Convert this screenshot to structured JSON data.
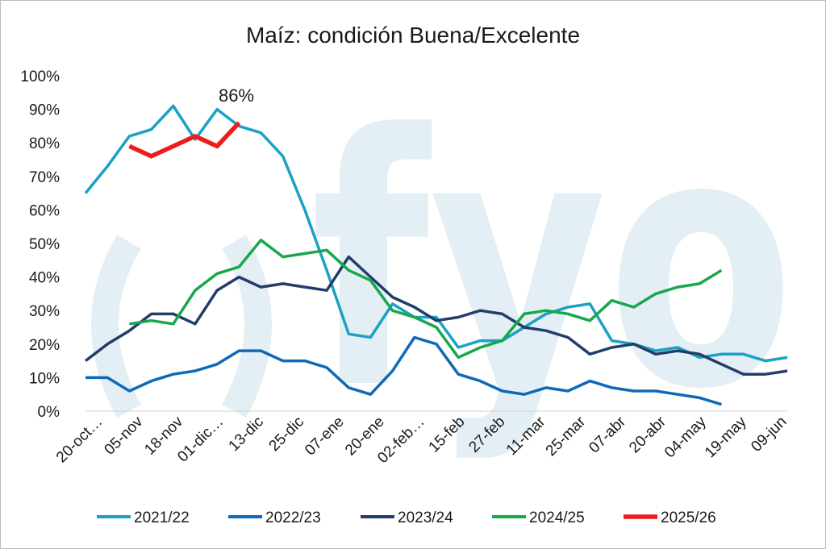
{
  "chart_data": {
    "type": "line",
    "title": "Maíz: condición Buena/Excelente",
    "xlabel": "",
    "ylabel": "",
    "ylim": [
      0,
      100
    ],
    "ytick_labels": [
      "0%",
      "10%",
      "20%",
      "30%",
      "40%",
      "50%",
      "60%",
      "70%",
      "80%",
      "90%",
      "100%"
    ],
    "x_tick_labels": [
      "20-oct…",
      "05-nov",
      "18-nov",
      "01-dic…",
      "13-dic",
      "25-dic",
      "07-ene",
      "20-ene",
      "02-feb…",
      "15-feb",
      "27-feb",
      "11-mar",
      "25-mar",
      "07-abr",
      "20-abr",
      "04-may",
      "19-may",
      "09-jun"
    ],
    "annotation": "86%",
    "watermark": "fyo",
    "series": [
      {
        "name": "2021/22",
        "color": "#1ba1c5",
        "values": [
          65,
          73,
          82,
          84,
          91,
          81,
          90,
          85,
          83,
          76,
          60,
          42,
          23,
          22,
          32,
          28,
          28,
          19,
          21,
          21,
          25,
          29,
          31,
          32,
          21,
          20,
          18,
          19,
          16,
          17,
          17,
          15,
          16
        ]
      },
      {
        "name": "2022/23",
        "color": "#1069b8",
        "values": [
          10,
          10,
          6,
          9,
          11,
          12,
          14,
          18,
          18,
          15,
          15,
          13,
          7,
          5,
          12,
          22,
          20,
          11,
          9,
          6,
          5,
          7,
          6,
          9,
          7,
          6,
          6,
          5,
          4,
          2,
          null,
          null,
          null
        ]
      },
      {
        "name": "2023/24",
        "color": "#233d6b",
        "values": [
          15,
          20,
          24,
          29,
          29,
          26,
          36,
          40,
          37,
          38,
          37,
          36,
          46,
          40,
          34,
          31,
          27,
          28,
          30,
          29,
          25,
          24,
          22,
          17,
          19,
          20,
          17,
          18,
          17,
          14,
          11,
          11,
          12
        ]
      },
      {
        "name": "2024/25",
        "color": "#16a84b",
        "values": [
          null,
          null,
          26,
          27,
          26,
          36,
          41,
          43,
          51,
          46,
          47,
          48,
          42,
          39,
          30,
          28,
          25,
          16,
          19,
          21,
          29,
          30,
          29,
          27,
          33,
          31,
          35,
          37,
          38,
          42,
          null,
          null,
          null
        ]
      },
      {
        "name": "2025/26",
        "color": "#ee1c1c",
        "values": [
          null,
          null,
          79,
          76,
          79,
          82,
          79,
          86,
          null,
          null,
          null,
          null,
          null,
          null,
          null,
          null,
          null,
          null,
          null,
          null,
          null,
          null,
          null,
          null,
          null,
          null,
          null,
          null,
          null,
          null,
          null,
          null,
          null
        ]
      }
    ]
  }
}
